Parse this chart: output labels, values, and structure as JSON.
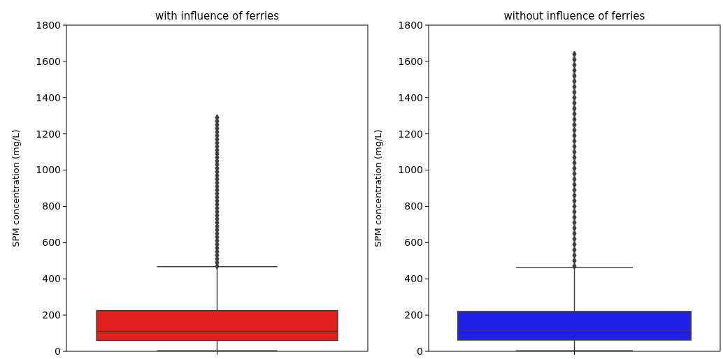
{
  "chart_data": [
    {
      "type": "box",
      "title": "with influence of ferries",
      "ylabel": "SPM concentration (mg/L)",
      "categories": [
        null
      ],
      "ylim": [
        0,
        1800
      ],
      "yticks": [
        0,
        200,
        400,
        600,
        800,
        1000,
        1200,
        1400,
        1600,
        1800
      ],
      "tick_labels": "y",
      "marker": "diamond",
      "series": [
        {
          "color": "#e01e1e",
          "boxes": [
            {
              "low": 3,
              "q1": 60,
              "median": 110,
              "q3": 225,
              "high": 467,
              "outliers": [
                470,
                490,
                510,
                530,
                550,
                570,
                590,
                610,
                630,
                650,
                670,
                690,
                710,
                730,
                750,
                770,
                790,
                810,
                830,
                850,
                870,
                890,
                910,
                930,
                950,
                970,
                990,
                1010,
                1030,
                1050,
                1070,
                1090,
                1110,
                1130,
                1150,
                1170,
                1190,
                1210,
                1230,
                1250,
                1270,
                1290
              ]
            }
          ]
        }
      ]
    },
    {
      "type": "box",
      "title": "without influence of ferries",
      "ylabel": "SPM concentration (mg/L)",
      "categories": [
        null
      ],
      "ylim": [
        0,
        1800
      ],
      "yticks": [
        0,
        200,
        400,
        600,
        800,
        1000,
        1200,
        1400,
        1600,
        1800
      ],
      "tick_labels": "y",
      "marker": "diamond",
      "series": [
        {
          "color": "#1f1fe6",
          "boxes": [
            {
              "low": 3,
              "q1": 62,
              "median": 115,
              "q3": 220,
              "high": 462,
              "outliers": [
                470,
                500,
                530,
                560,
                590,
                620,
                650,
                680,
                710,
                740,
                770,
                800,
                830,
                860,
                890,
                920,
                950,
                980,
                1010,
                1040,
                1070,
                1100,
                1130,
                1160,
                1190,
                1220,
                1250,
                1280,
                1310,
                1340,
                1370,
                1400,
                1430,
                1460,
                1490,
                1520,
                1550,
                1580,
                1610,
                1640
              ]
            }
          ]
        }
      ]
    }
  ]
}
